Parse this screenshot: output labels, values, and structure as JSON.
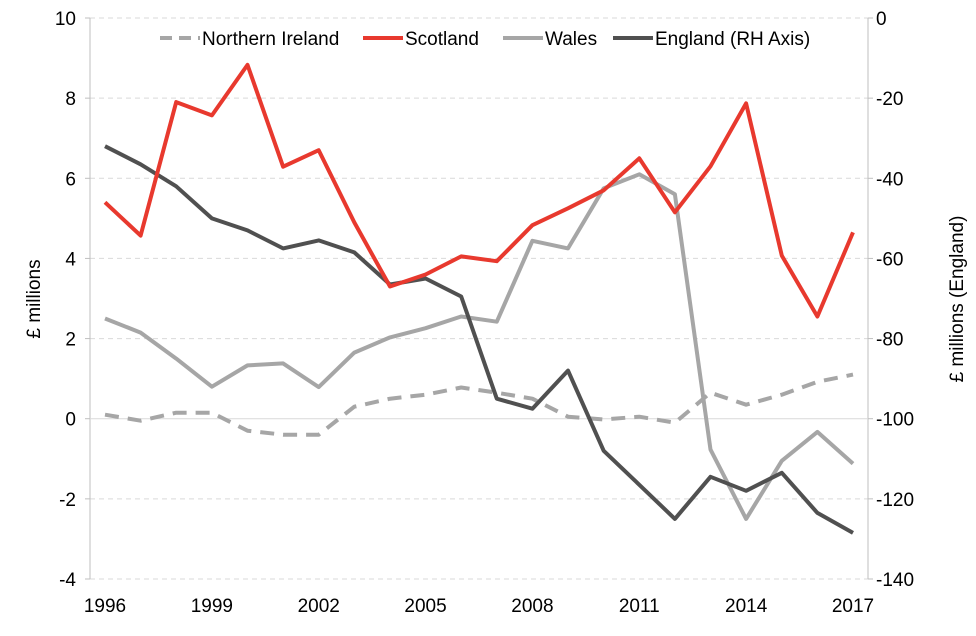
{
  "chart_data": {
    "type": "line",
    "x": [
      1996,
      1997,
      1998,
      1999,
      2000,
      2001,
      2002,
      2003,
      2004,
      2005,
      2006,
      2007,
      2008,
      2009,
      2010,
      2011,
      2012,
      2013,
      2014,
      2015,
      2016,
      2017
    ],
    "x_tick_labels": [
      "1996",
      "1999",
      "2002",
      "2005",
      "2008",
      "2011",
      "2014",
      "2017"
    ],
    "ylabel": "£ millions",
    "ylim": [
      -4,
      10
    ],
    "y_tick_labels": [
      "-4",
      "-2",
      "0",
      "2",
      "4",
      "6",
      "8",
      "10"
    ],
    "y2label": "£ millions  (England)",
    "y2lim": [
      -140,
      0
    ],
    "y2_tick_labels": [
      "-140",
      "-120",
      "-100",
      "-80",
      "-60",
      "-40",
      "-20",
      "0"
    ],
    "legend_position": "top",
    "grid": "horizontal dashed",
    "series": [
      {
        "name": "Northern Ireland",
        "axis": "left",
        "color": "#a6a6a6",
        "dash": "dashed",
        "values": [
          0.1,
          -0.05,
          0.15,
          0.15,
          -0.3,
          -0.4,
          -0.4,
          0.3,
          0.5,
          0.6,
          0.78,
          0.65,
          0.5,
          0.05,
          -0.02,
          0.05,
          -0.1,
          0.65,
          0.35,
          0.6,
          0.92,
          1.1
        ]
      },
      {
        "name": "Scotland",
        "axis": "left",
        "color": "#e8392e",
        "dash": "solid",
        "values": [
          5.4,
          4.57,
          7.9,
          7.57,
          8.83,
          6.29,
          6.7,
          4.9,
          3.3,
          3.6,
          4.05,
          3.93,
          4.83,
          5.25,
          5.7,
          6.5,
          5.15,
          6.3,
          7.87,
          4.07,
          2.55,
          4.65
        ]
      },
      {
        "name": "Wales",
        "axis": "left",
        "color": "#a6a6a6",
        "dash": "solid",
        "values": [
          2.5,
          2.15,
          1.5,
          0.8,
          1.33,
          1.38,
          0.79,
          1.65,
          2.03,
          2.26,
          2.55,
          2.42,
          4.44,
          4.25,
          5.75,
          6.1,
          5.6,
          -0.77,
          -2.5,
          -1.05,
          -0.33,
          -1.12
        ]
      },
      {
        "name": "England (RH Axis)",
        "axis": "right",
        "color": "#505050",
        "dash": "solid",
        "values": [
          -32,
          -36.5,
          -42,
          -50,
          -53,
          -57.5,
          -55.5,
          -58.5,
          -66.5,
          -65,
          -69.5,
          -95,
          -97.5,
          -88,
          -108,
          -116.5,
          -125,
          -114.5,
          -118,
          -113.5,
          -123.5,
          -128.5
        ]
      }
    ]
  }
}
